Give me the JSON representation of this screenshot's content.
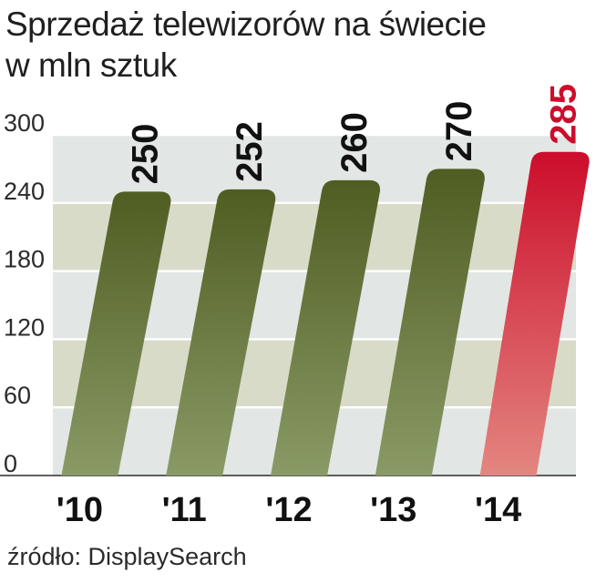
{
  "title_line1": "Sprzedaż telewizorów na świecie",
  "title_line2": "w mln sztuk",
  "source": "źródło: DisplaySearch",
  "colors": {
    "bar_top": "#4f5d22",
    "bar_bottom": "#8a9a66",
    "highlight_top": "#cc0d2b",
    "highlight_bottom": "#e38680",
    "band_light": "#e2e6e4",
    "band_dark": "#d9dbc9",
    "label_dark": "#111111",
    "label_red": "#cc0d2b"
  },
  "chart_data": {
    "type": "bar",
    "title": "Sprzedaż telewizorów na świecie",
    "subtitle": "w mln sztuk",
    "categories": [
      "'10",
      "'11",
      "'12",
      "'13",
      "'14"
    ],
    "values": [
      250,
      252,
      260,
      270,
      285
    ],
    "value_labels": [
      "250",
      "252",
      "260",
      "270",
      "285"
    ],
    "highlight_index": 4,
    "ylim": [
      0,
      300
    ],
    "yticks": [
      0,
      60,
      120,
      180,
      240,
      300
    ],
    "ytick_labels": [
      "0",
      "60",
      "120",
      "180",
      "240",
      "300"
    ],
    "grid": true,
    "legend": "none"
  }
}
